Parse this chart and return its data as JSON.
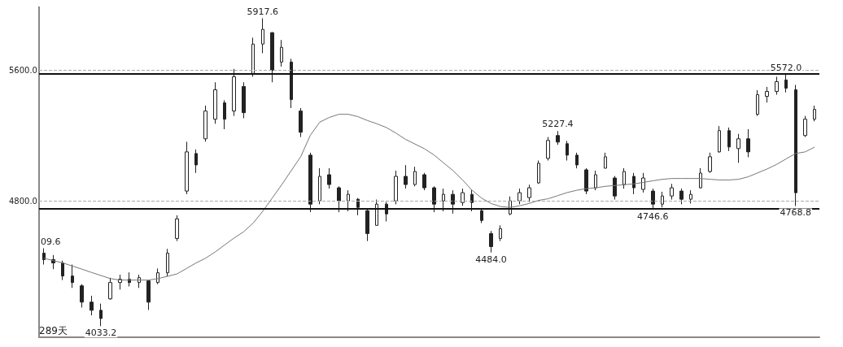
{
  "chart_data": {
    "type": "candlestick",
    "categories": [
      null,
      null,
      null,
      null,
      null,
      null,
      null,
      null,
      null,
      null,
      null,
      null,
      null,
      null,
      null,
      null,
      null,
      null,
      null,
      null,
      null,
      null,
      null,
      null,
      null,
      null,
      null,
      null,
      null,
      null,
      null,
      null,
      null,
      null,
      null,
      null,
      null,
      null,
      null,
      null,
      null,
      null,
      null,
      null,
      null,
      null,
      null,
      null,
      null,
      null,
      null,
      null,
      null,
      null,
      null,
      null,
      null,
      null,
      null,
      null,
      null,
      null,
      null,
      null,
      null,
      null,
      null,
      null,
      null,
      null,
      null,
      null,
      null,
      null,
      null,
      null,
      null,
      null,
      null,
      null,
      null,
      null
    ],
    "series": [
      {
        "color": "#222222",
        "ohlc": [
          [
            4480,
            4509.6,
            4410,
            4440
          ],
          [
            4440,
            4468,
            4382,
            4420
          ],
          [
            4420,
            4434,
            4315,
            4340
          ],
          [
            4340,
            4410,
            4267,
            4300
          ],
          [
            4280,
            4290,
            4147,
            4180
          ],
          [
            4180,
            4219,
            4099,
            4130
          ],
          [
            4130,
            4171,
            4033.2,
            4080
          ],
          [
            4200,
            4329,
            4195,
            4300
          ],
          [
            4300,
            4348,
            4257,
            4320
          ],
          [
            4320,
            4362,
            4276,
            4300
          ],
          [
            4300,
            4348,
            4267,
            4330
          ],
          [
            4310,
            4315,
            4132,
            4180
          ],
          [
            4300,
            4386,
            4290,
            4360
          ],
          [
            4360,
            4506,
            4338,
            4480
          ],
          [
            4570,
            4712,
            4554,
            4690
          ],
          [
            4860,
            5162,
            4841,
            5100
          ],
          [
            5090,
            5114,
            4971,
            5020
          ],
          [
            5180,
            5383,
            5162,
            5350
          ],
          [
            5300,
            5526,
            5272,
            5480
          ],
          [
            5400,
            5416,
            5239,
            5300
          ],
          [
            5350,
            5608,
            5320,
            5560
          ],
          [
            5500,
            5526,
            5306,
            5340
          ],
          [
            5580,
            5799,
            5560,
            5760
          ],
          [
            5760,
            5917.6,
            5704,
            5850
          ],
          [
            5830,
            5833,
            5526,
            5600
          ],
          [
            5650,
            5785,
            5622,
            5740
          ],
          [
            5650,
            5670,
            5368,
            5420
          ],
          [
            5350,
            5368,
            5191,
            5220
          ],
          [
            5080,
            5095,
            4731,
            4780
          ],
          [
            4800,
            5000,
            4779,
            4950
          ],
          [
            4960,
            5000,
            4875,
            4900
          ],
          [
            4880,
            4889,
            4731,
            4800
          ],
          [
            4800,
            4865,
            4736,
            4840
          ],
          [
            4810,
            4817,
            4712,
            4760
          ],
          [
            4740,
            4746,
            4554,
            4600
          ],
          [
            4650,
            4808,
            4650,
            4780
          ],
          [
            4780,
            4793,
            4674,
            4720
          ],
          [
            4800,
            4985,
            4779,
            4950
          ],
          [
            4950,
            5019,
            4875,
            4900
          ],
          [
            4900,
            5009,
            4889,
            4980
          ],
          [
            4960,
            4971,
            4865,
            4880
          ],
          [
            4880,
            4889,
            4731,
            4780
          ],
          [
            4800,
            4875,
            4736,
            4840
          ],
          [
            4840,
            4865,
            4722,
            4780
          ],
          [
            4790,
            4875,
            4770,
            4850
          ],
          [
            4840,
            4865,
            4736,
            4790
          ],
          [
            4740,
            4746,
            4664,
            4680
          ],
          [
            4600,
            4616,
            4484.0,
            4520
          ],
          [
            4570,
            4650,
            4554,
            4630
          ],
          [
            4720,
            4827,
            4712,
            4800
          ],
          [
            4800,
            4875,
            4779,
            4850
          ],
          [
            4820,
            4899,
            4793,
            4880
          ],
          [
            4910,
            5047,
            4904,
            5030
          ],
          [
            5060,
            5191,
            5047,
            5170
          ],
          [
            5200,
            5227.4,
            5143,
            5160
          ],
          [
            5150,
            5167,
            5047,
            5080
          ],
          [
            5080,
            5095,
            4999,
            5020
          ],
          [
            4990,
            5000,
            4841,
            4860
          ],
          [
            4880,
            4985,
            4865,
            4960
          ],
          [
            5000,
            5095,
            4999,
            5070
          ],
          [
            4940,
            4952,
            4808,
            4830
          ],
          [
            4900,
            5000,
            4875,
            4980
          ],
          [
            4950,
            4971,
            4841,
            4880
          ],
          [
            4870,
            4971,
            4851,
            4940
          ],
          [
            4860,
            4875,
            4746.6,
            4780
          ],
          [
            4780,
            4856,
            4760,
            4830
          ],
          [
            4830,
            4904,
            4808,
            4880
          ],
          [
            4860,
            4875,
            4779,
            4810
          ],
          [
            4810,
            4865,
            4784,
            4840
          ],
          [
            4880,
            5000,
            4875,
            4970
          ],
          [
            4980,
            5095,
            4971,
            5070
          ],
          [
            5100,
            5258,
            5095,
            5230
          ],
          [
            5230,
            5249,
            5105,
            5130
          ],
          [
            5120,
            5210,
            5033,
            5180
          ],
          [
            5180,
            5239,
            5067,
            5100
          ],
          [
            5330,
            5478,
            5320,
            5450
          ],
          [
            5440,
            5498,
            5402,
            5470
          ],
          [
            5470,
            5560,
            5450,
            5530
          ],
          [
            5540,
            5572.0,
            5464,
            5490
          ],
          [
            5480,
            5510,
            4768.8,
            4850
          ],
          [
            5200,
            5320,
            5191,
            5300
          ],
          [
            5300,
            5383,
            5287,
            5360
          ]
        ]
      },
      {
        "type": "line",
        "color": "#777777",
        "values": [
          4449,
          4434,
          4420,
          4401,
          4382,
          4362,
          4343,
          4324,
          4315,
          4315,
          4315,
          4315,
          4324,
          4338,
          4353,
          4386,
          4420,
          4449,
          4487,
          4530,
          4573,
          4611,
          4664,
          4736,
          4817,
          4899,
          4985,
          5071,
          5201,
          5282,
          5311,
          5330,
          5330,
          5316,
          5292,
          5272,
          5249,
          5215,
          5177,
          5148,
          5119,
          5081,
          5033,
          4985,
          4928,
          4865,
          4817,
          4784,
          4765,
          4760,
          4770,
          4784,
          4803,
          4813,
          4832,
          4851,
          4865,
          4875,
          4880,
          4889,
          4894,
          4899,
          4904,
          4913,
          4923,
          4932,
          4937,
          4937,
          4937,
          4937,
          4932,
          4928,
          4928,
          4932,
          4947,
          4971,
          4995,
          5023,
          5057,
          5090,
          5100,
          5129
        ]
      }
    ],
    "ylim": [
      3965,
      5990
    ],
    "yticks": [
      {
        "value": 4800,
        "label": "4800.0"
      },
      {
        "value": 5600,
        "label": "5600.0"
      }
    ],
    "grid": "y",
    "tick_labels": "y",
    "ref_lines": [
      {
        "axis": "y",
        "value": 5580,
        "label": null,
        "color": "#111111"
      },
      {
        "axis": "y",
        "value": 4750,
        "label": null,
        "color": "#111111"
      }
    ],
    "annotations": [
      "09.6",
      {
        "text": "4033.2",
        "y": 4033.2
      },
      {
        "text": "5917.6",
        "y": 5917.6
      },
      {
        "text": "4484.0",
        "y": 4484.0
      },
      {
        "text": "5227.4",
        "y": 5227.4
      },
      {
        "text": "4746.6",
        "y": 4746.6
      },
      {
        "text": "5572.0",
        "y": 5572.0
      },
      {
        "text": "4768.8",
        "y": 4768.8
      },
      "289天"
    ]
  }
}
